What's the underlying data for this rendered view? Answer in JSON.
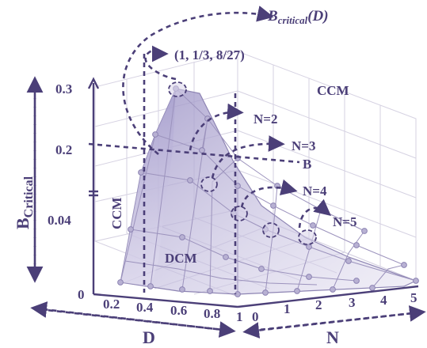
{
  "labels": {
    "b_critical_fn_base": "B",
    "b_critical_fn_sub": "critical",
    "b_critical_fn_arg": "(D)",
    "point": "(1, 1/3, 8/27)",
    "region_ccm_top": "CCM",
    "region_ccm_left": "CCM",
    "region_dcm": "DCM",
    "n2": "N=2",
    "n3": "N=3",
    "n4": "N=4",
    "n5": "N=5",
    "b_marker": "B",
    "y_axis_base": "B",
    "y_axis_sub": "Critical",
    "d_axis": "D",
    "n_axis": "N"
  },
  "y_ticks": [
    "0.3",
    "0.2",
    "0.04",
    "0"
  ],
  "d_ticks": [
    "0.2",
    "0.4",
    "0.6",
    "0.8",
    "1"
  ],
  "n_ticks": [
    "0",
    "1",
    "2",
    "3",
    "4",
    "5"
  ],
  "colors": {
    "ink": "#4b3f78",
    "surface": "#b3abd4",
    "grid": "#d6d2e2"
  }
}
